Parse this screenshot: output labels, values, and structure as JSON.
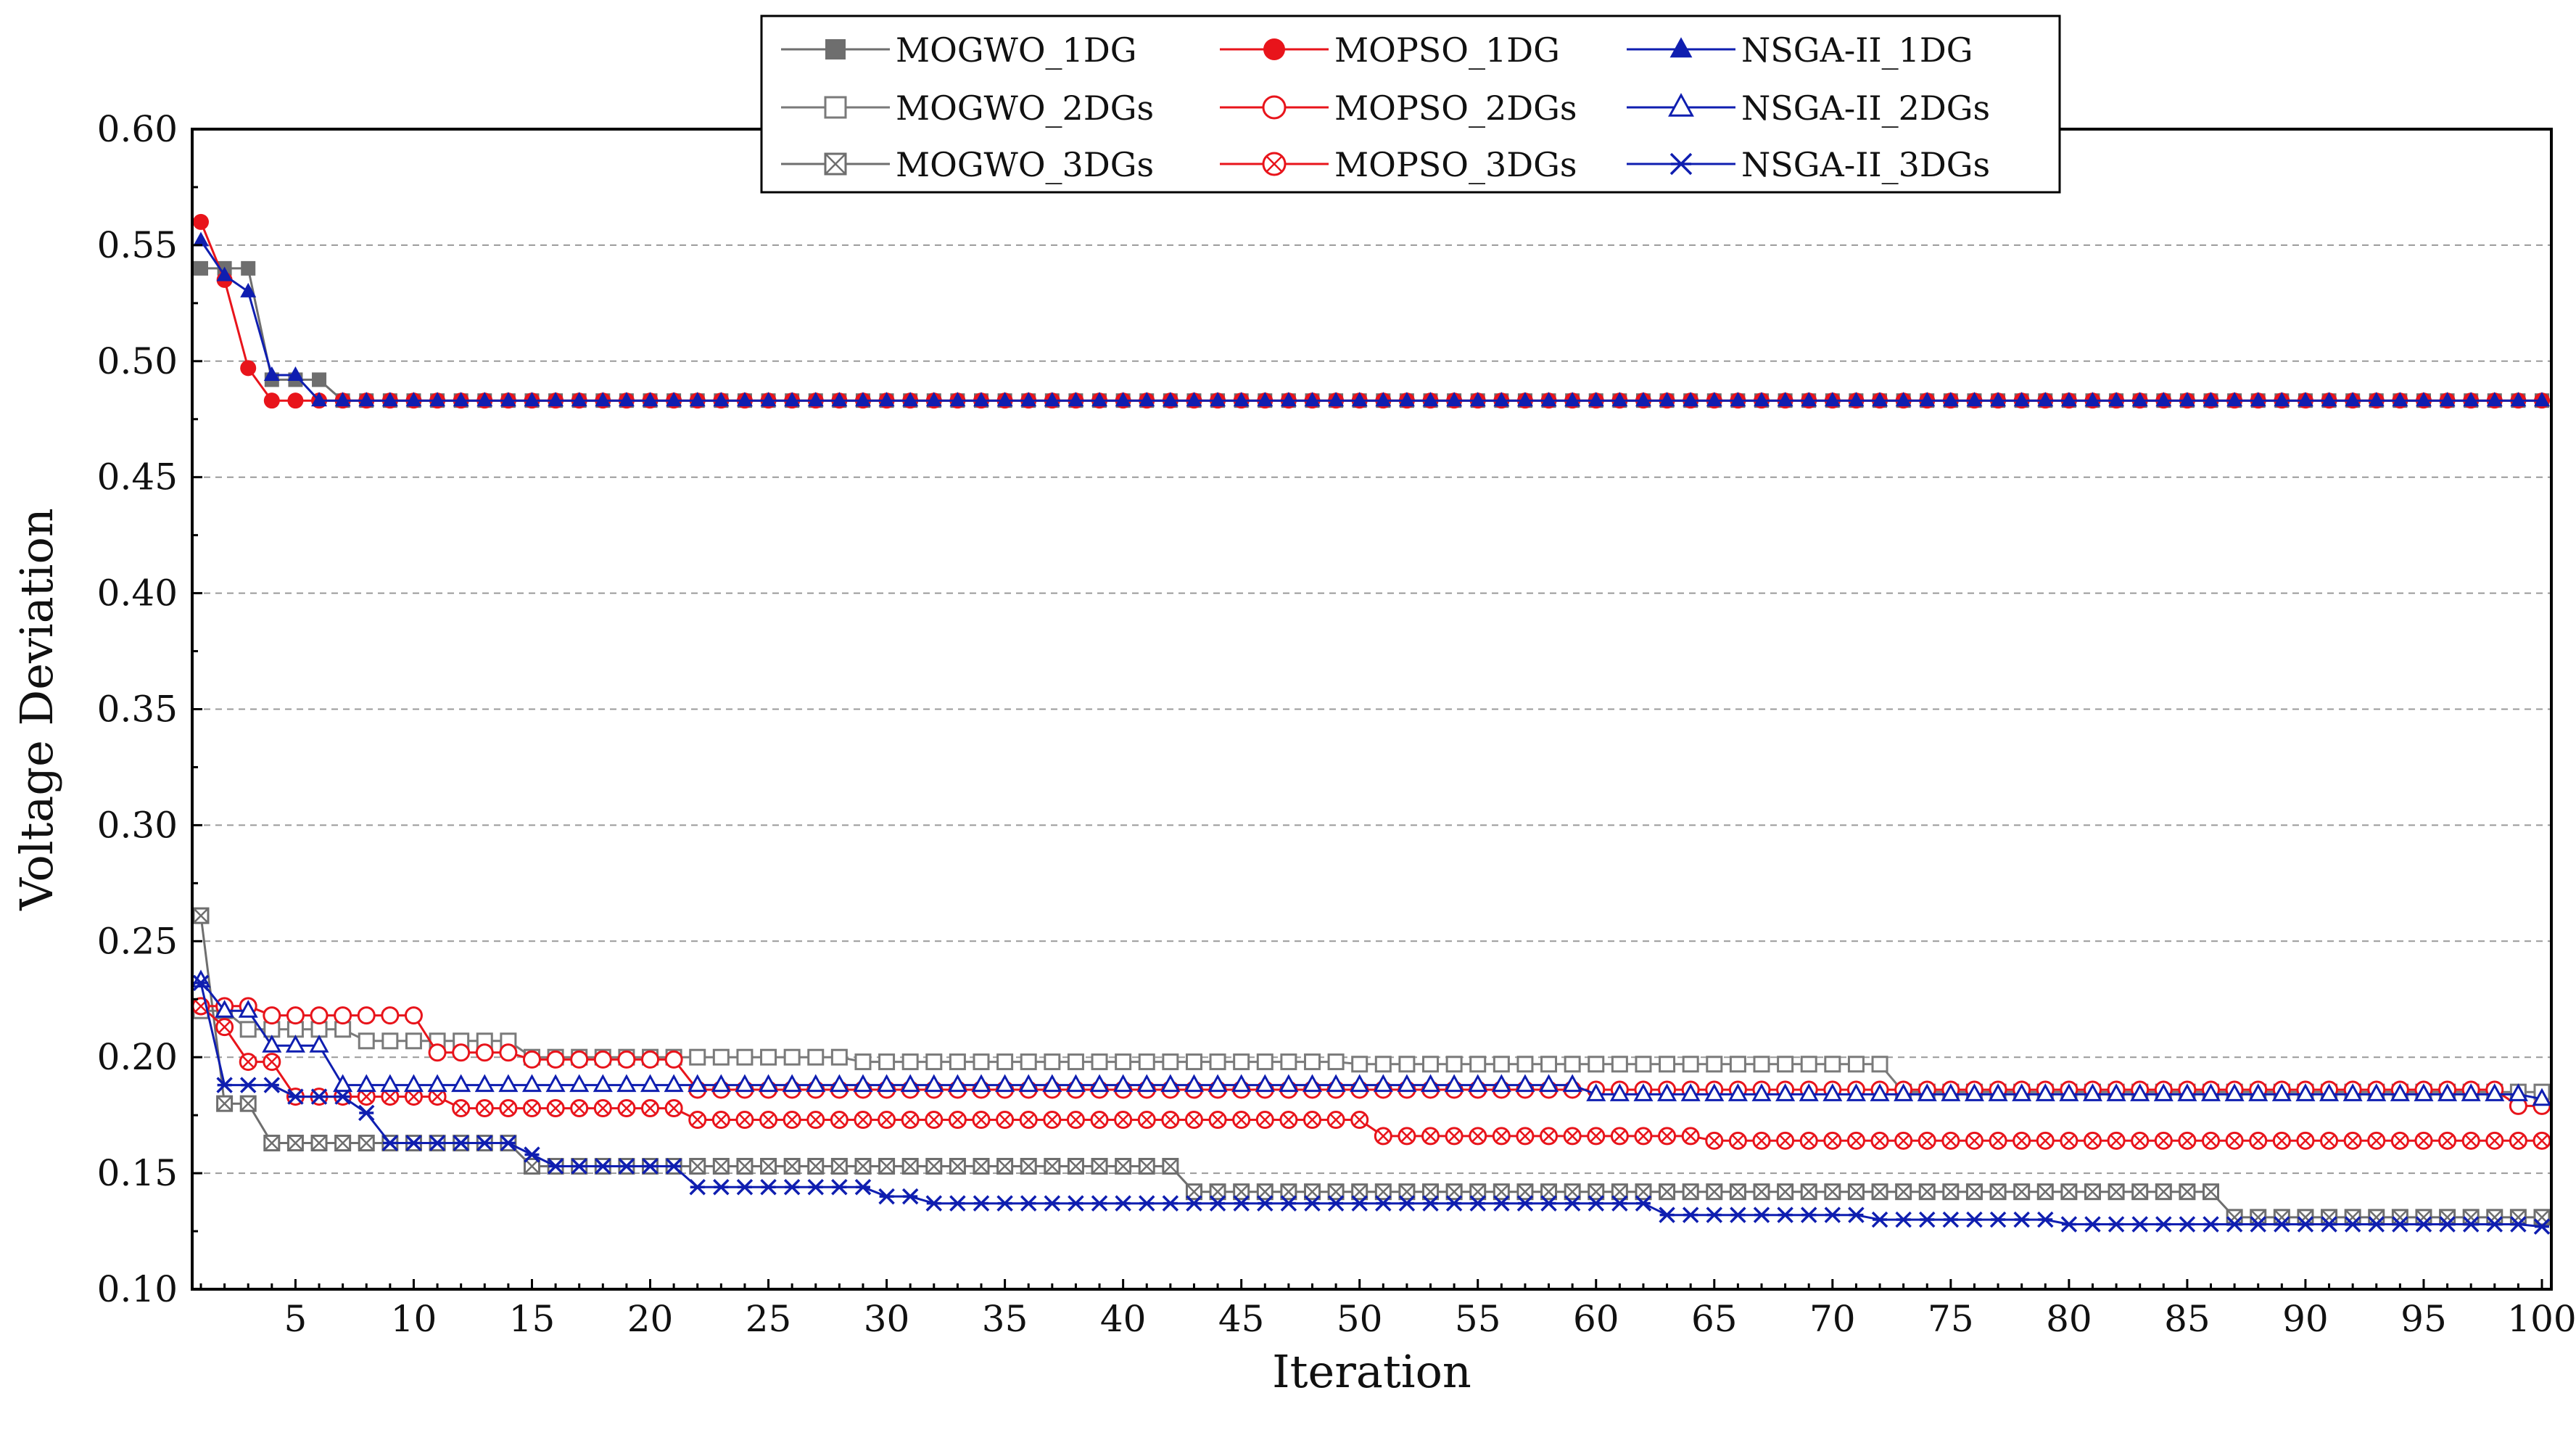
{
  "chart_data": {
    "type": "line",
    "title": "",
    "xlabel": "Iteration",
    "ylabel": "Voltage Deviation",
    "xlim": [
      1,
      100
    ],
    "ylim": [
      0.1,
      0.6
    ],
    "x_ticks": [
      5,
      10,
      15,
      20,
      25,
      30,
      35,
      40,
      45,
      50,
      55,
      60,
      65,
      70,
      75,
      80,
      85,
      90,
      95,
      100
    ],
    "y_ticks": [
      0.1,
      0.15,
      0.2,
      0.25,
      0.3,
      0.35,
      0.4,
      0.45,
      0.5,
      0.55,
      0.6
    ],
    "grid": "horizontal dashed",
    "legend_position": "top-center",
    "series": [
      {
        "name": "MOGWO_1DG",
        "color": "#6e6e6e",
        "marker": "square-filled",
        "breakpoints": [
          [
            1,
            0.54
          ],
          [
            4,
            0.492
          ],
          [
            7,
            0.483
          ]
        ]
      },
      {
        "name": "MOGWO_2DGs",
        "color": "#7a7a7a",
        "marker": "square-open",
        "breakpoints": [
          [
            1,
            0.22
          ],
          [
            3,
            0.212
          ],
          [
            6,
            0.212
          ],
          [
            8,
            0.207
          ],
          [
            11,
            0.207
          ],
          [
            15,
            0.2
          ],
          [
            22,
            0.2
          ],
          [
            29,
            0.198
          ],
          [
            50,
            0.197
          ],
          [
            73,
            0.185
          ],
          [
            100,
            0.185
          ]
        ]
      },
      {
        "name": "MOGWO_3DGs",
        "color": "#6e6e6e",
        "marker": "square-x",
        "breakpoints": [
          [
            1,
            0.261
          ],
          [
            2,
            0.18
          ],
          [
            4,
            0.163
          ],
          [
            15,
            0.153
          ],
          [
            43,
            0.142
          ],
          [
            87,
            0.131
          ],
          [
            100,
            0.131
          ]
        ]
      },
      {
        "name": "MOPSO_1DG",
        "color": "#e8141b",
        "marker": "circle-filled",
        "breakpoints": [
          [
            1,
            0.56
          ],
          [
            2,
            0.535
          ],
          [
            3,
            0.497
          ],
          [
            4,
            0.483
          ]
        ]
      },
      {
        "name": "MOPSO_2DGs",
        "color": "#e8141b",
        "marker": "circle-open",
        "breakpoints": [
          [
            1,
            0.222
          ],
          [
            4,
            0.218
          ],
          [
            11,
            0.202
          ],
          [
            15,
            0.199
          ],
          [
            22,
            0.186
          ],
          [
            99,
            0.179
          ],
          [
            100,
            0.179
          ]
        ]
      },
      {
        "name": "MOPSO_3DGs",
        "color": "#e8141b",
        "marker": "circle-x",
        "breakpoints": [
          [
            1,
            0.222
          ],
          [
            2,
            0.213
          ],
          [
            3,
            0.198
          ],
          [
            5,
            0.183
          ],
          [
            11,
            0.183
          ],
          [
            12,
            0.178
          ],
          [
            22,
            0.173
          ],
          [
            51,
            0.166
          ],
          [
            65,
            0.164
          ],
          [
            100,
            0.164
          ]
        ]
      },
      {
        "name": "NSGA-II_1DG",
        "color": "#0f1eb0",
        "marker": "triangle-filled",
        "breakpoints": [
          [
            1,
            0.552
          ],
          [
            2,
            0.537
          ],
          [
            3,
            0.53
          ],
          [
            4,
            0.494
          ],
          [
            6,
            0.483
          ]
        ]
      },
      {
        "name": "NSGA-II_2DGs",
        "color": "#0f1eb0",
        "marker": "triangle-open",
        "breakpoints": [
          [
            1,
            0.233
          ],
          [
            2,
            0.22
          ],
          [
            4,
            0.205
          ],
          [
            7,
            0.188
          ],
          [
            60,
            0.184
          ],
          [
            100,
            0.182
          ]
        ]
      },
      {
        "name": "NSGA-II_3DGs",
        "color": "#0f1eb0",
        "marker": "x-star",
        "breakpoints": [
          [
            1,
            0.232
          ],
          [
            2,
            0.188
          ],
          [
            5,
            0.183
          ],
          [
            8,
            0.176
          ],
          [
            9,
            0.163
          ],
          [
            15,
            0.158
          ],
          [
            16,
            0.153
          ],
          [
            22,
            0.144
          ],
          [
            30,
            0.14
          ],
          [
            32,
            0.137
          ],
          [
            63,
            0.132
          ],
          [
            72,
            0.13
          ],
          [
            80,
            0.128
          ],
          [
            100,
            0.127
          ]
        ]
      }
    ]
  }
}
